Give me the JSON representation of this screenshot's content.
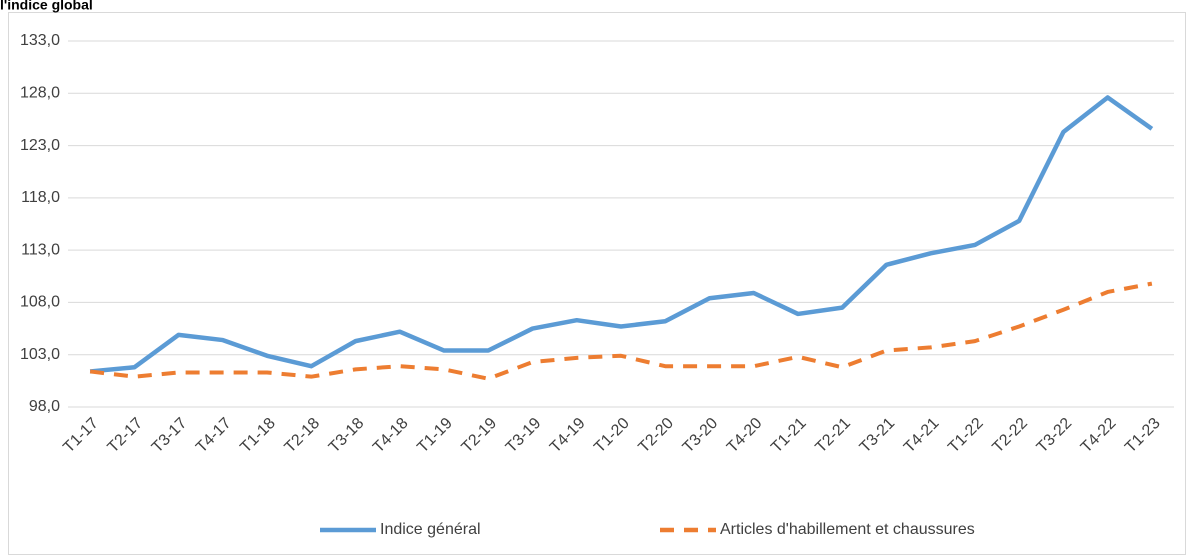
{
  "chart_data": {
    "type": "line",
    "title": "l'indice global",
    "categories": [
      "T1-17",
      "T2-17",
      "T3-17",
      "T4-17",
      "T1-18",
      "T2-18",
      "T3-18",
      "T4-18",
      "T1-19",
      "T2-19",
      "T3-19",
      "T4-19",
      "T1-20",
      "T2-20",
      "T3-20",
      "T4-20",
      "T1-21",
      "T2-21",
      "T3-21",
      "T4-21",
      "T1-22",
      "T2-22",
      "T3-22",
      "T4-22",
      "T1-23"
    ],
    "series": [
      {
        "name": "Indice général",
        "color": "#5b9bd5",
        "dashed": false,
        "values": [
          101.4,
          101.8,
          104.9,
          104.4,
          102.9,
          101.9,
          104.3,
          105.2,
          103.4,
          103.4,
          105.5,
          106.3,
          105.7,
          106.2,
          108.4,
          108.9,
          106.9,
          107.5,
          111.6,
          112.7,
          113.5,
          115.8,
          124.3,
          127.6,
          124.6
        ]
      },
      {
        "name": "Articles d'habillement et chaussures",
        "color": "#ed7d31",
        "dashed": true,
        "values": [
          101.4,
          100.9,
          101.3,
          101.3,
          101.3,
          100.9,
          101.6,
          101.9,
          101.6,
          100.7,
          102.3,
          102.7,
          102.9,
          101.9,
          101.9,
          101.9,
          102.8,
          101.8,
          103.4,
          103.7,
          104.3,
          105.7,
          107.3,
          109.0,
          109.8
        ]
      }
    ],
    "ylim": [
      98,
      133
    ],
    "yticks": [
      {
        "value": 98,
        "label": "98,0"
      },
      {
        "value": 103,
        "label": "103,0"
      },
      {
        "value": 108,
        "label": "108,0"
      },
      {
        "value": 113,
        "label": "113,0"
      },
      {
        "value": 118,
        "label": "118,0"
      },
      {
        "value": 123,
        "label": "123,0"
      },
      {
        "value": 128,
        "label": "128,0"
      },
      {
        "value": 133,
        "label": "133,0"
      }
    ],
    "grid": true,
    "legend": "bottom"
  }
}
